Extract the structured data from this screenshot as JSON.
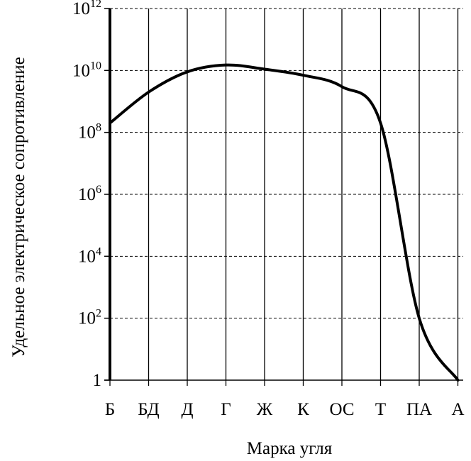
{
  "chart_data": {
    "type": "line",
    "title": "",
    "xlabel": "Марка угля",
    "ylabel": "Удельное электрическое сопротивление",
    "y_scale": "log",
    "ylim": [
      1,
      1000000000000
    ],
    "grid": true,
    "y_ticks": [
      {
        "value": 1,
        "base": "1",
        "exp": ""
      },
      {
        "value": 100,
        "base": "10",
        "exp": "2"
      },
      {
        "value": 10000,
        "base": "10",
        "exp": "4"
      },
      {
        "value": 1000000,
        "base": "10",
        "exp": "6"
      },
      {
        "value": 100000000,
        "base": "10",
        "exp": "8"
      },
      {
        "value": 10000000000,
        "base": "10",
        "exp": "10"
      },
      {
        "value": 1000000000000,
        "base": "10",
        "exp": "12"
      }
    ],
    "categories": [
      "Б",
      "БД",
      "Д",
      "Г",
      "Ж",
      "К",
      "ОС",
      "Т",
      "ПА",
      "А"
    ],
    "series": [
      {
        "name": "",
        "color": "#000000",
        "points": [
          {
            "x": "Б",
            "y": 200000000
          },
          {
            "x": "БД",
            "y": 2000000000
          },
          {
            "x": "Д",
            "y": 9000000000
          },
          {
            "x": "Г",
            "y": 15000000000
          },
          {
            "x": "Ж",
            "y": 11000000000
          },
          {
            "x": "К",
            "y": 7000000000
          },
          {
            "x": "ОС",
            "y": 3000000000
          },
          {
            "x": "Т",
            "y": 200000000
          },
          {
            "x": "ПА",
            "y": 100
          },
          {
            "x": "А",
            "y": 1
          }
        ]
      }
    ]
  }
}
